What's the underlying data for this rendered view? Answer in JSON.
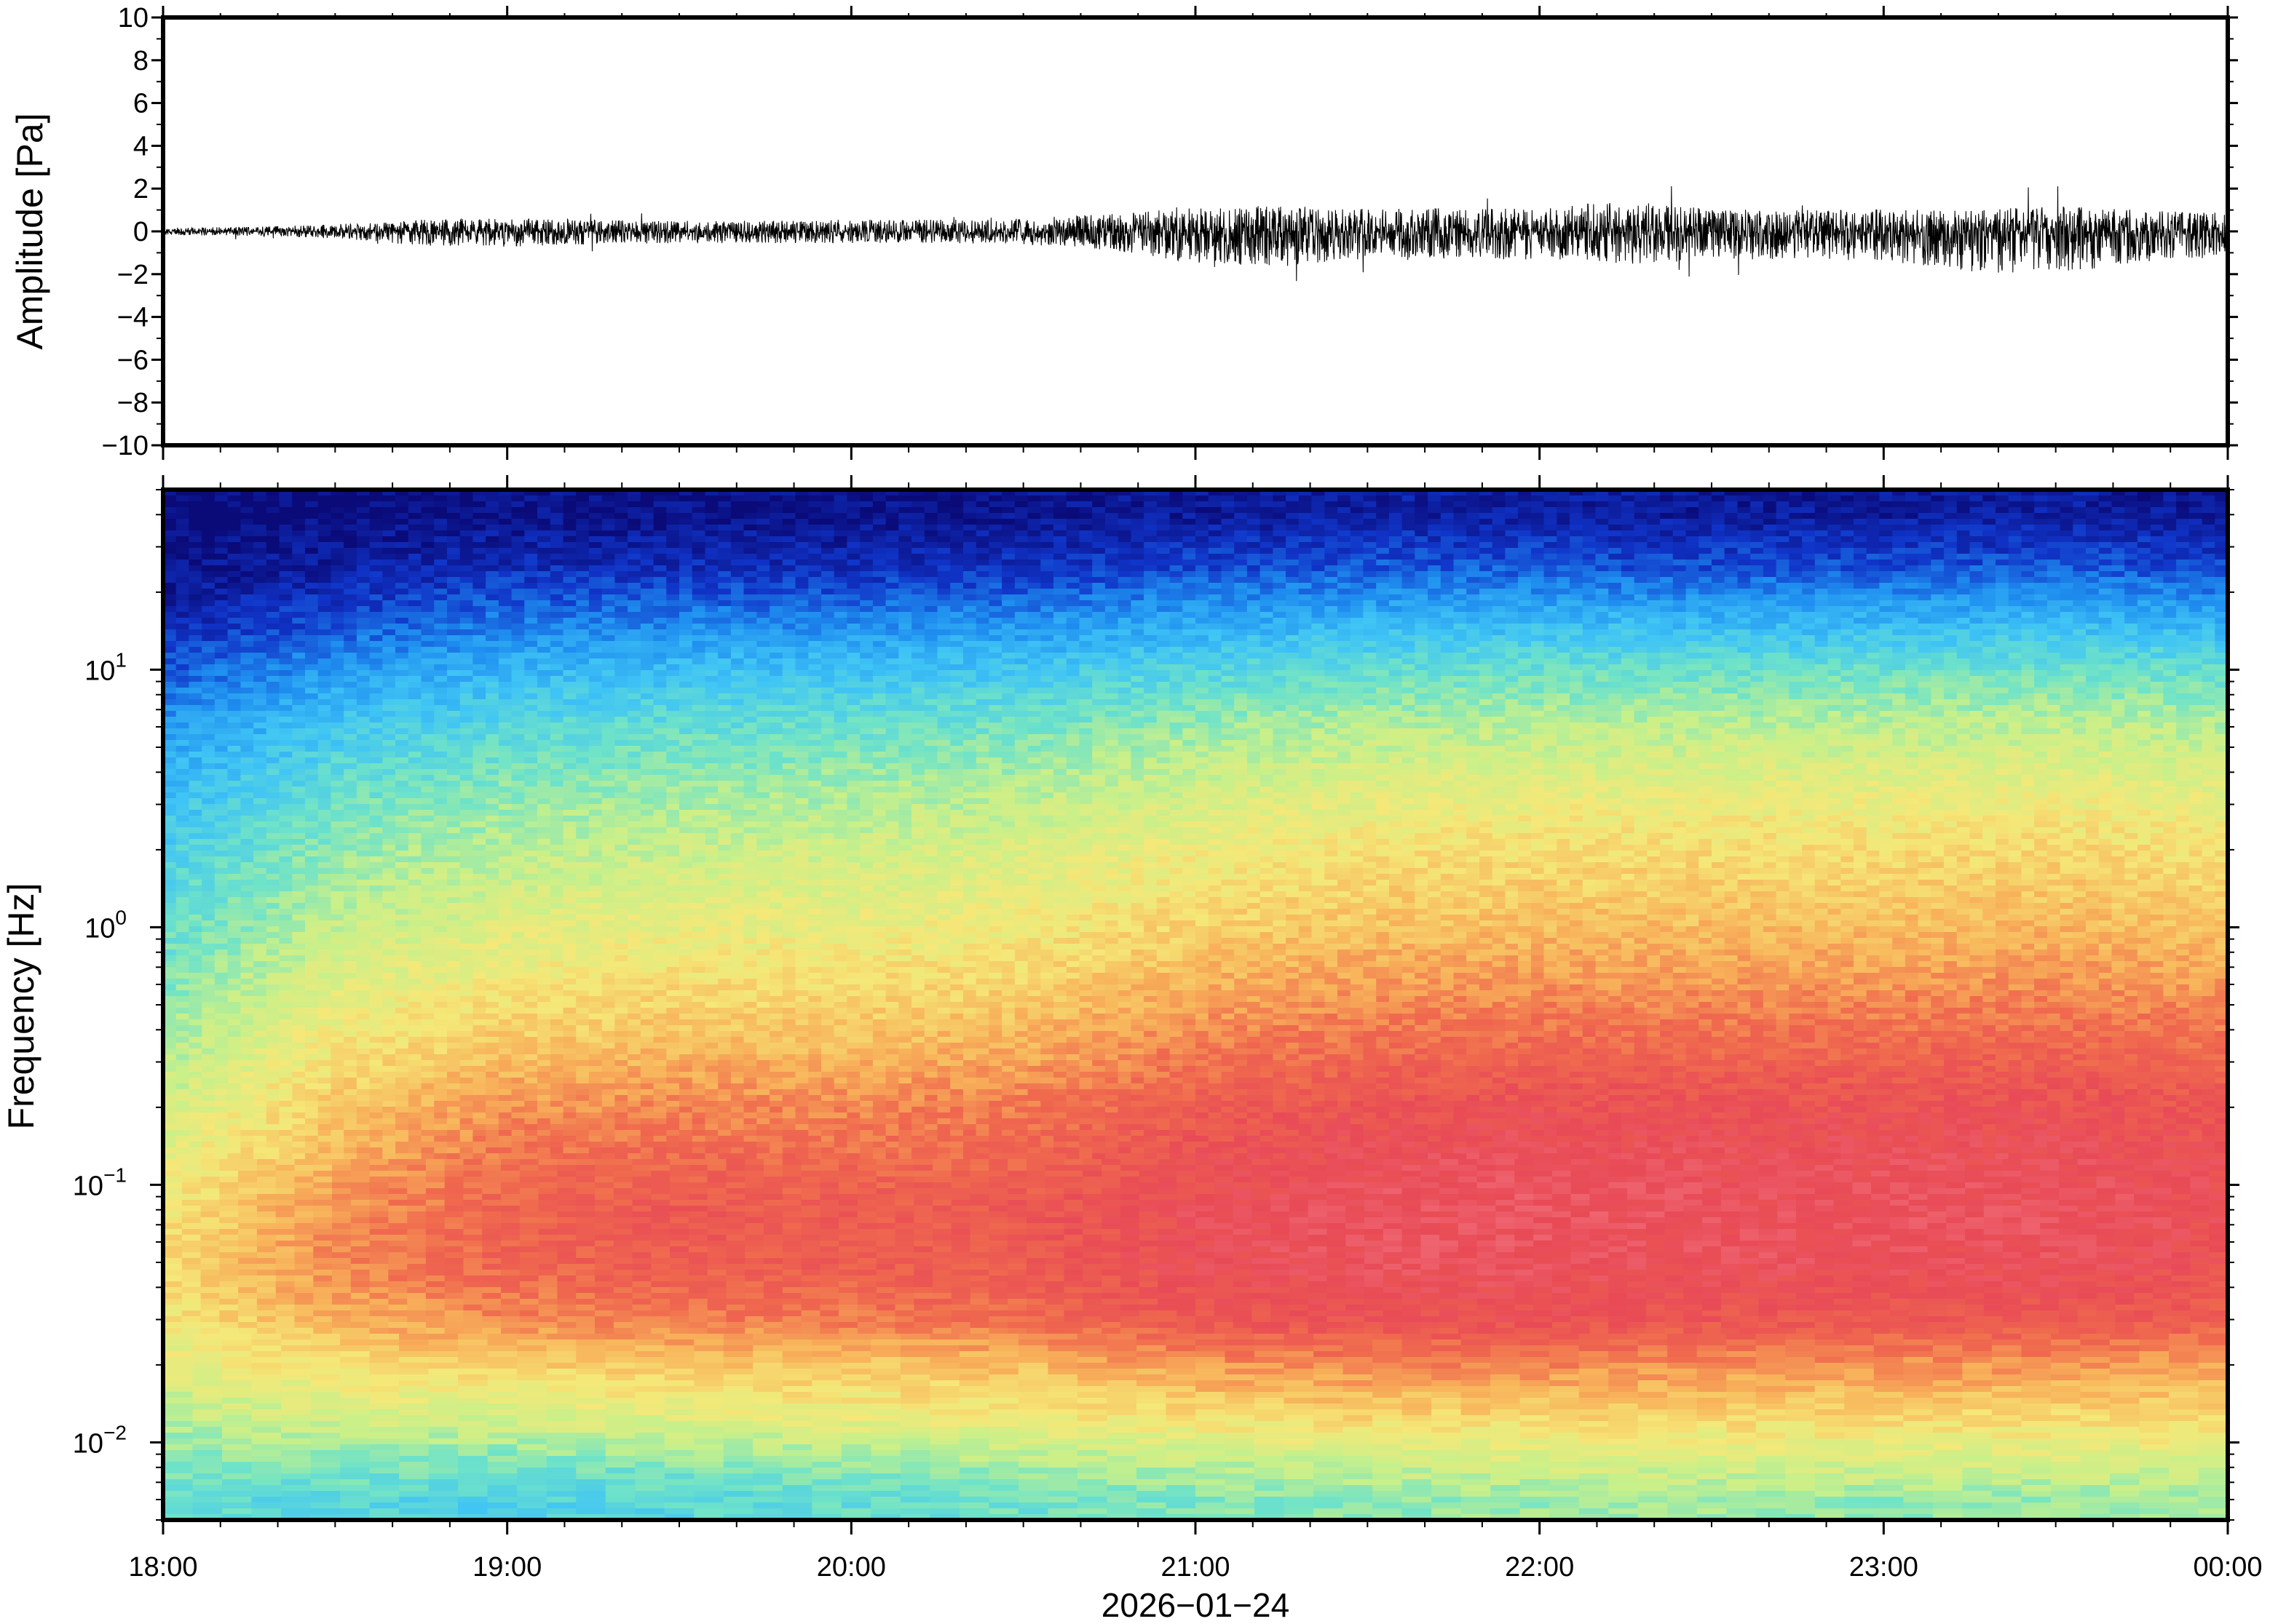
{
  "chart_data": [
    {
      "type": "line",
      "title": "",
      "xlabel": "",
      "ylabel": "Amplitude [Pa]",
      "ylim": [
        -10,
        10
      ],
      "yticks": [
        "10",
        "8",
        "6",
        "4",
        "2",
        "0",
        "−2",
        "−4",
        "−6",
        "−8",
        "−10"
      ],
      "grid": false,
      "series": [
        {
          "x": [
            "18:00",
            "18:15",
            "18:30",
            "18:45",
            "19:00",
            "19:15",
            "19:30",
            "19:45",
            "20:00",
            "20:15",
            "20:30",
            "20:45",
            "21:00",
            "21:15",
            "21:30",
            "21:45",
            "22:00",
            "22:15",
            "22:30",
            "22:45",
            "23:00",
            "23:15",
            "23:30",
            "23:45",
            "00:00"
          ],
          "envelope_max": [
            0.3,
            0.4,
            0.6,
            1.0,
            1.1,
            1.0,
            0.9,
            0.9,
            1.0,
            1.0,
            1.1,
            1.5,
            2.0,
            2.2,
            1.9,
            2.0,
            2.0,
            2.6,
            1.9,
            1.8,
            1.9,
            1.8,
            2.2,
            1.8,
            1.6
          ],
          "envelope_min": [
            -0.3,
            -0.4,
            -0.6,
            -1.2,
            -1.3,
            -1.1,
            -1.0,
            -1.0,
            -1.0,
            -1.0,
            -1.1,
            -1.6,
            -2.7,
            -3.0,
            -2.3,
            -2.3,
            -2.5,
            -3.0,
            -2.4,
            -2.4,
            -2.5,
            -3.4,
            -3.7,
            -2.6,
            -2.2
          ]
        }
      ]
    },
    {
      "type": "heatmap",
      "title": "",
      "xlabel": "2026−01−24",
      "ylabel": "Frequency [Hz]",
      "yscale": "log",
      "ylim": [
        0.005,
        50
      ],
      "yticks": [
        {
          "base": "10",
          "exp": "−2",
          "value": 0.01
        },
        {
          "base": "10",
          "exp": "−1",
          "value": 0.1
        },
        {
          "base": "10",
          "exp": "0",
          "value": 1
        },
        {
          "base": "10",
          "exp": "1",
          "value": 10
        }
      ],
      "x": [
        "18:00",
        "19:00",
        "20:00",
        "21:00",
        "22:00",
        "23:00",
        "00:00"
      ],
      "colormap": [
        "#0a0a78",
        "#1034c8",
        "#1f8ff0",
        "#3fc4f5",
        "#6fe3c8",
        "#c8f08a",
        "#f5e878",
        "#f8b35a",
        "#f06a4e",
        "#e84a56",
        "#f2737e"
      ],
      "rows_freq_hz": [
        0.006,
        0.008,
        0.012,
        0.02,
        0.03,
        0.05,
        0.08,
        0.12,
        0.2,
        0.35,
        0.6,
        1,
        2,
        3.5,
        6,
        10,
        16,
        25,
        40
      ],
      "cols_time": [
        "18:00",
        "18:30",
        "19:00",
        "19:30",
        "20:00",
        "20:30",
        "21:00",
        "21:30",
        "22:00",
        "22:30",
        "23:00",
        "23:30",
        "00:00"
      ],
      "relative_power": [
        [
          0.38,
          0.36,
          0.34,
          0.36,
          0.38,
          0.4,
          0.42,
          0.44,
          0.45,
          0.46,
          0.44,
          0.45,
          0.46
        ],
        [
          0.42,
          0.42,
          0.4,
          0.42,
          0.44,
          0.46,
          0.48,
          0.5,
          0.52,
          0.52,
          0.52,
          0.52,
          0.52
        ],
        [
          0.48,
          0.52,
          0.52,
          0.54,
          0.56,
          0.58,
          0.6,
          0.62,
          0.62,
          0.62,
          0.62,
          0.62,
          0.62
        ],
        [
          0.55,
          0.62,
          0.64,
          0.66,
          0.66,
          0.68,
          0.74,
          0.76,
          0.76,
          0.74,
          0.74,
          0.74,
          0.72
        ],
        [
          0.6,
          0.7,
          0.76,
          0.78,
          0.78,
          0.8,
          0.86,
          0.88,
          0.88,
          0.86,
          0.86,
          0.86,
          0.84
        ],
        [
          0.62,
          0.76,
          0.82,
          0.84,
          0.84,
          0.85,
          0.9,
          0.92,
          0.92,
          0.91,
          0.91,
          0.91,
          0.88
        ],
        [
          0.6,
          0.74,
          0.82,
          0.85,
          0.84,
          0.85,
          0.9,
          0.92,
          0.93,
          0.92,
          0.92,
          0.92,
          0.9
        ],
        [
          0.56,
          0.7,
          0.8,
          0.82,
          0.81,
          0.82,
          0.88,
          0.91,
          0.92,
          0.91,
          0.91,
          0.91,
          0.89
        ],
        [
          0.52,
          0.66,
          0.74,
          0.76,
          0.76,
          0.78,
          0.84,
          0.87,
          0.88,
          0.88,
          0.88,
          0.88,
          0.86
        ],
        [
          0.47,
          0.6,
          0.66,
          0.68,
          0.68,
          0.7,
          0.77,
          0.8,
          0.81,
          0.81,
          0.81,
          0.82,
          0.8
        ],
        [
          0.42,
          0.55,
          0.6,
          0.62,
          0.62,
          0.64,
          0.7,
          0.73,
          0.74,
          0.74,
          0.74,
          0.75,
          0.73
        ],
        [
          0.38,
          0.5,
          0.55,
          0.57,
          0.57,
          0.59,
          0.64,
          0.67,
          0.68,
          0.68,
          0.68,
          0.69,
          0.67
        ],
        [
          0.33,
          0.44,
          0.49,
          0.51,
          0.52,
          0.54,
          0.58,
          0.61,
          0.62,
          0.62,
          0.62,
          0.63,
          0.61
        ],
        [
          0.28,
          0.38,
          0.43,
          0.45,
          0.46,
          0.48,
          0.52,
          0.55,
          0.56,
          0.56,
          0.56,
          0.57,
          0.55
        ],
        [
          0.22,
          0.31,
          0.36,
          0.38,
          0.39,
          0.41,
          0.45,
          0.48,
          0.49,
          0.49,
          0.49,
          0.5,
          0.48
        ],
        [
          0.14,
          0.22,
          0.27,
          0.29,
          0.3,
          0.31,
          0.35,
          0.38,
          0.39,
          0.39,
          0.39,
          0.4,
          0.38
        ],
        [
          0.06,
          0.12,
          0.17,
          0.18,
          0.19,
          0.2,
          0.24,
          0.26,
          0.27,
          0.26,
          0.26,
          0.27,
          0.25
        ],
        [
          0.02,
          0.05,
          0.08,
          0.08,
          0.08,
          0.09,
          0.12,
          0.14,
          0.14,
          0.13,
          0.13,
          0.14,
          0.12
        ],
        [
          0.0,
          0.01,
          0.02,
          0.02,
          0.02,
          0.03,
          0.04,
          0.05,
          0.05,
          0.04,
          0.04,
          0.05,
          0.03
        ]
      ],
      "grid": false
    }
  ]
}
